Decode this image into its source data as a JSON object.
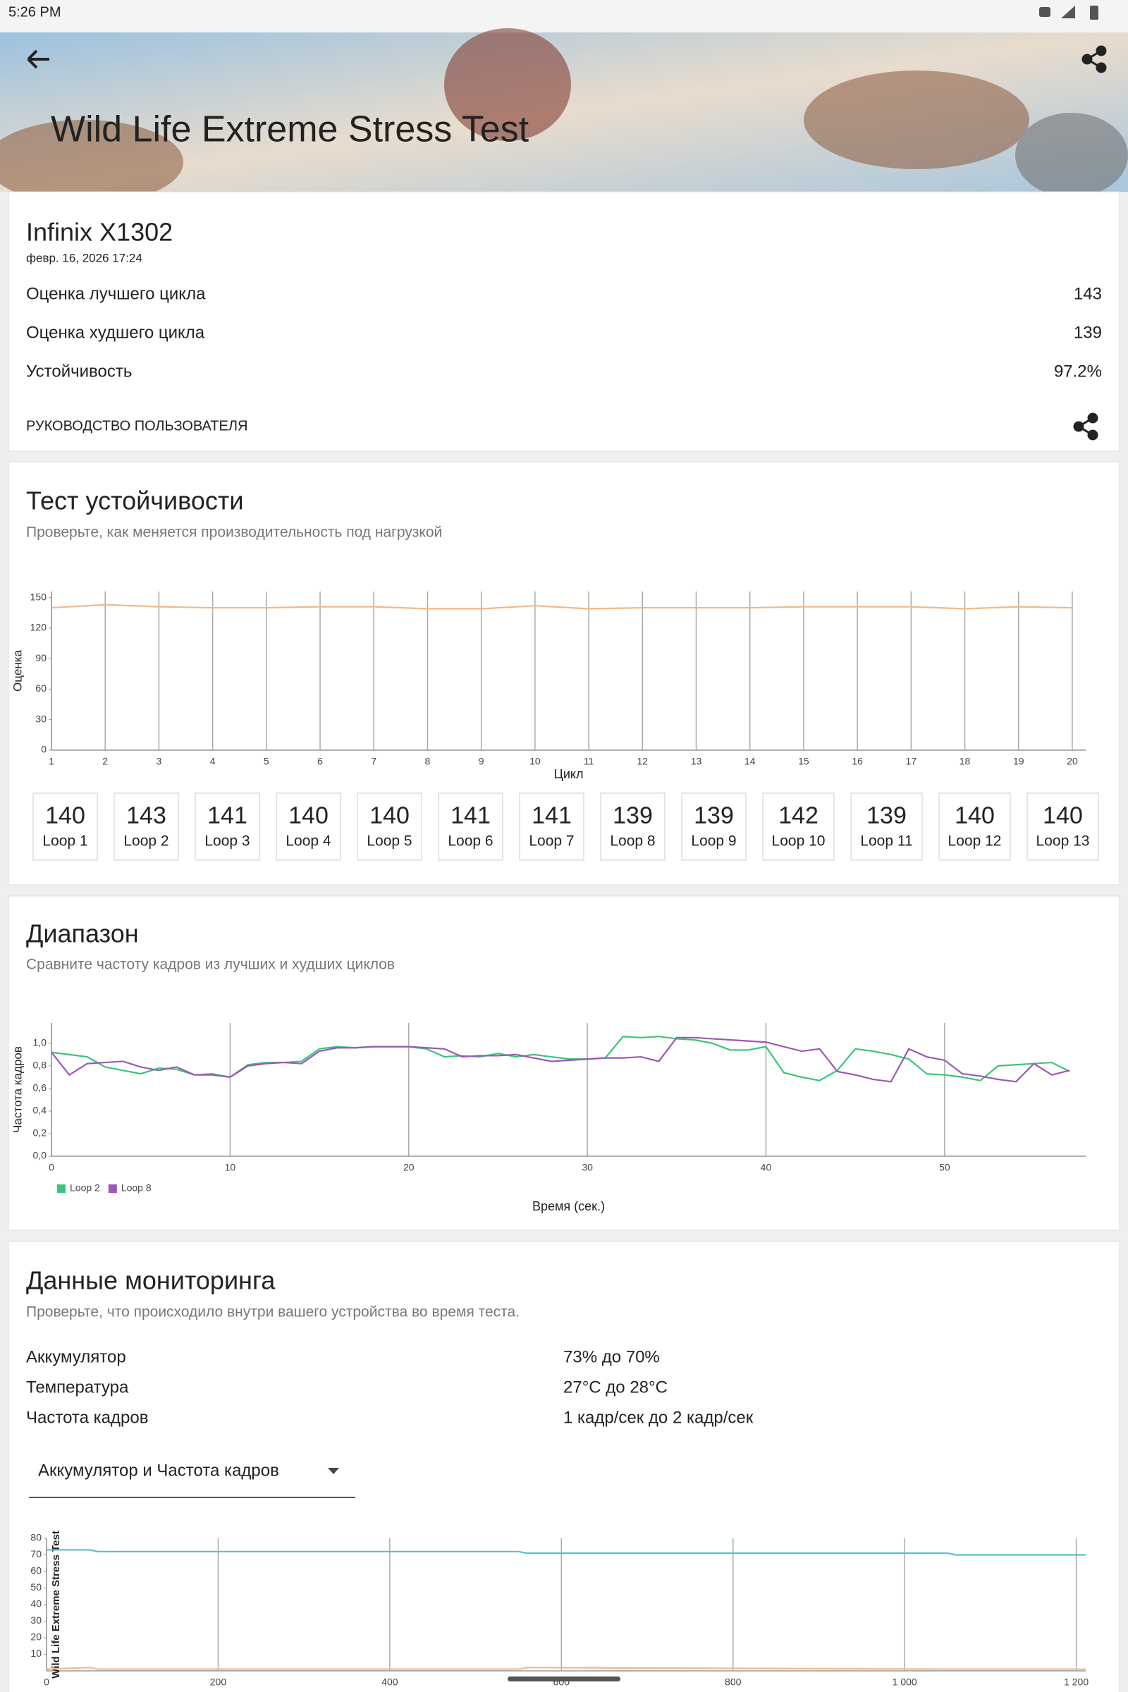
{
  "status_bar": {
    "time": "5:26 PM"
  },
  "header": {
    "title": "Wild Life Extreme Stress Test"
  },
  "summary": {
    "device": "Infinix X1302",
    "date": "февр. 16, 2026 17:24",
    "rows": [
      {
        "label": "Оценка лучшего цикла",
        "value": "143"
      },
      {
        "label": "Оценка худшего цикла",
        "value": "139"
      },
      {
        "label": "Устойчивость",
        "value": "97.2%"
      }
    ],
    "guide": "РУКОВОДСТВО ПОЛЬЗОВАТЕЛЯ"
  },
  "stability": {
    "title": "Тест устойчивости",
    "subtitle": "Проверьте, как меняется производительность под нагрузкой",
    "chart_data": {
      "type": "line",
      "x": [
        1,
        2,
        3,
        4,
        5,
        6,
        7,
        8,
        9,
        10,
        11,
        12,
        13,
        14,
        15,
        16,
        17,
        18,
        19,
        20
      ],
      "values": [
        140,
        143,
        141,
        140,
        140,
        141,
        141,
        139,
        139,
        142,
        139,
        140,
        140,
        140,
        141,
        141,
        141,
        139,
        141,
        140
      ],
      "color": "#f0b98a",
      "xlim": [
        1,
        20.25
      ],
      "ylim": [
        0,
        156
      ],
      "xticks": [
        1,
        2,
        3,
        4,
        5,
        6,
        7,
        8,
        9,
        10,
        11,
        12,
        13,
        14,
        15,
        16,
        17,
        18,
        19,
        20
      ],
      "yticks": [
        0,
        30,
        60,
        90,
        120,
        150
      ],
      "xlabel": "Цикл",
      "ylabel": "Оценка",
      "grid": "x"
    },
    "loop_labels": [
      "Loop 1",
      "Loop 2",
      "Loop 3",
      "Loop 4",
      "Loop 5",
      "Loop 6",
      "Loop 7",
      "Loop 8",
      "Loop 9",
      "Loop 10",
      "Loop 11",
      "Loop 12",
      "Loop 13"
    ]
  },
  "range": {
    "title": "Диапазон",
    "subtitle": "Сравните частоту кадров из лучших и худших циклов",
    "chart_data": {
      "type": "line",
      "x": [
        0,
        1,
        2,
        3,
        4,
        5,
        6,
        7,
        8,
        9,
        10,
        11,
        12,
        13,
        14,
        15,
        16,
        17,
        18,
        19,
        20,
        21,
        22,
        23,
        24,
        25,
        26,
        27,
        28,
        29,
        30,
        31,
        32,
        33,
        34,
        35,
        36,
        37,
        38,
        39,
        40,
        41,
        42,
        43,
        44,
        45,
        46,
        47,
        48,
        49,
        50,
        51,
        52,
        53,
        54,
        55,
        56,
        57
      ],
      "series": [
        {
          "name": "Loop 2",
          "color": "#3cc47c",
          "values": [
            0.92,
            0.9,
            0.88,
            0.79,
            0.76,
            0.73,
            0.78,
            0.77,
            0.72,
            0.73,
            0.7,
            0.81,
            0.83,
            0.83,
            0.84,
            0.95,
            0.97,
            0.96,
            0.97,
            0.97,
            0.97,
            0.95,
            0.88,
            0.89,
            0.88,
            0.91,
            0.88,
            0.9,
            0.88,
            0.86,
            0.86,
            0.87,
            1.06,
            1.05,
            1.06,
            1.04,
            1.03,
            1.0,
            0.94,
            0.94,
            0.97,
            0.74,
            0.7,
            0.67,
            0.76,
            0.95,
            0.93,
            0.9,
            0.86,
            0.73,
            0.72,
            0.7,
            0.67,
            0.8,
            0.81,
            0.82,
            0.83,
            0.75
          ]
        },
        {
          "name": "Loop 8",
          "color": "#9b59b6",
          "values": [
            0.92,
            0.72,
            0.82,
            0.83,
            0.84,
            0.79,
            0.76,
            0.79,
            0.72,
            0.72,
            0.7,
            0.8,
            0.82,
            0.83,
            0.82,
            0.93,
            0.96,
            0.96,
            0.97,
            0.97,
            0.97,
            0.96,
            0.95,
            0.88,
            0.89,
            0.89,
            0.9,
            0.87,
            0.84,
            0.85,
            0.86,
            0.87,
            0.87,
            0.88,
            0.84,
            1.05,
            1.05,
            1.04,
            1.03,
            1.02,
            1.01,
            0.97,
            0.93,
            0.95,
            0.75,
            0.72,
            0.68,
            0.66,
            0.95,
            0.88,
            0.85,
            0.73,
            0.71,
            0.68,
            0.66,
            0.82,
            0.72,
            0.76
          ]
        }
      ],
      "xlim": [
        0,
        57.9
      ],
      "ylim": [
        0,
        1.18
      ],
      "xticks": [
        0,
        10,
        20,
        30,
        40,
        50
      ],
      "yticks": [
        {
          "value": 0,
          "label": "0,0"
        },
        {
          "value": 0.2,
          "label": "0,2"
        },
        {
          "value": 0.4,
          "label": "0,4"
        },
        {
          "value": 0.6,
          "label": "0,6"
        },
        {
          "value": 0.8,
          "label": "0,8"
        },
        {
          "value": 1,
          "label": "1,0"
        }
      ],
      "xlabel": "Время (сек.)",
      "ylabel": "Частота кадров",
      "grid": "x",
      "legend": "bottom-left"
    }
  },
  "monitoring": {
    "title": "Данные мониторинга",
    "subtitle": "Проверьте, что происходило внутри вашего устройства во время теста.",
    "rows": [
      {
        "label": "Аккумулятор",
        "value": "73% до 70%"
      },
      {
        "label": "Температура",
        "value": "27°C до 28°C"
      },
      {
        "label": "Частота кадров",
        "value": "1 кадр/сек до 2 кадр/сек"
      }
    ],
    "dropdown": "Аккумулятор и Частота кадров",
    "chart_data": {
      "type": "line",
      "x": [
        0,
        50,
        60,
        550,
        560,
        1050,
        1060,
        1211
      ],
      "series": [
        {
          "color": "#5bbfc9",
          "values": [
            73,
            73,
            72,
            72,
            71,
            71,
            70,
            70
          ]
        },
        {
          "color": "#f0b98a",
          "values": [
            1,
            2,
            1,
            1,
            2,
            1,
            1,
            1
          ]
        }
      ],
      "xlim": [
        0,
        1211
      ],
      "ylim": [
        0,
        80
      ],
      "xticks": [
        0,
        200,
        400,
        600,
        800,
        {
          "value": 1000,
          "label": "1 000"
        },
        {
          "value": 1200,
          "label": "1 200"
        }
      ],
      "yticks": [
        10,
        20,
        30,
        40,
        50,
        60,
        70,
        80
      ],
      "ylabel": "Wild Life Extreme Stress Test",
      "grid": "x"
    }
  }
}
